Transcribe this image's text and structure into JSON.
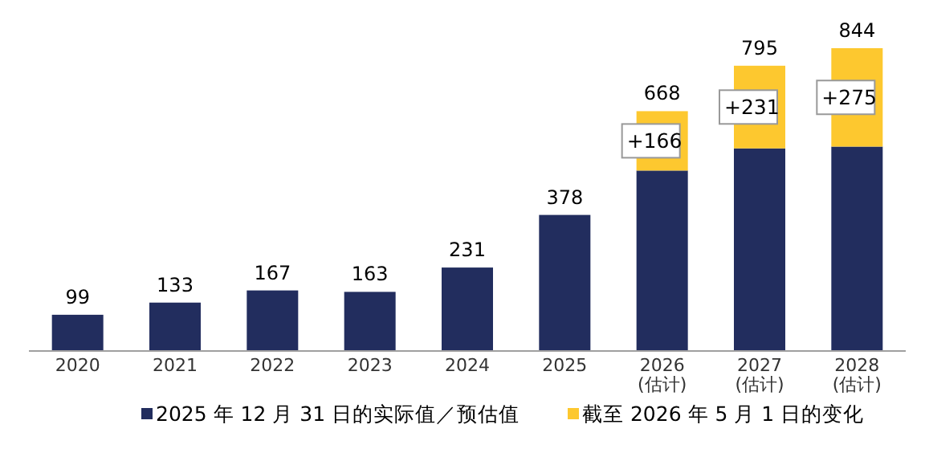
{
  "chart_data": {
    "type": "bar",
    "stacked": true,
    "categories": [
      "2020",
      "2021",
      "2022",
      "2023",
      "2024",
      "2025",
      "2026\n(估计)",
      "2027\n(估计)",
      "2028\n(估计)"
    ],
    "series": [
      {
        "name": "2025 年 12 月 31 日的实际值／预估值",
        "color": "#222d5e",
        "values": [
          99,
          133,
          167,
          163,
          231,
          378,
          502,
          564,
          569
        ],
        "value_labels": [
          "99",
          "133",
          "167",
          "163",
          "231",
          "378",
          null,
          null,
          null
        ]
      },
      {
        "name": "截至 2026 年 5 月 1 日的变化",
        "color": "#fdc82f",
        "values": [
          null,
          null,
          null,
          null,
          null,
          null,
          166,
          231,
          275
        ],
        "value_labels": [
          null,
          null,
          null,
          null,
          null,
          null,
          "+166",
          "+231",
          "+275"
        ]
      }
    ],
    "totals": [
      null,
      null,
      null,
      null,
      null,
      null,
      "668",
      "795",
      "844"
    ],
    "legend": "bottom"
  }
}
